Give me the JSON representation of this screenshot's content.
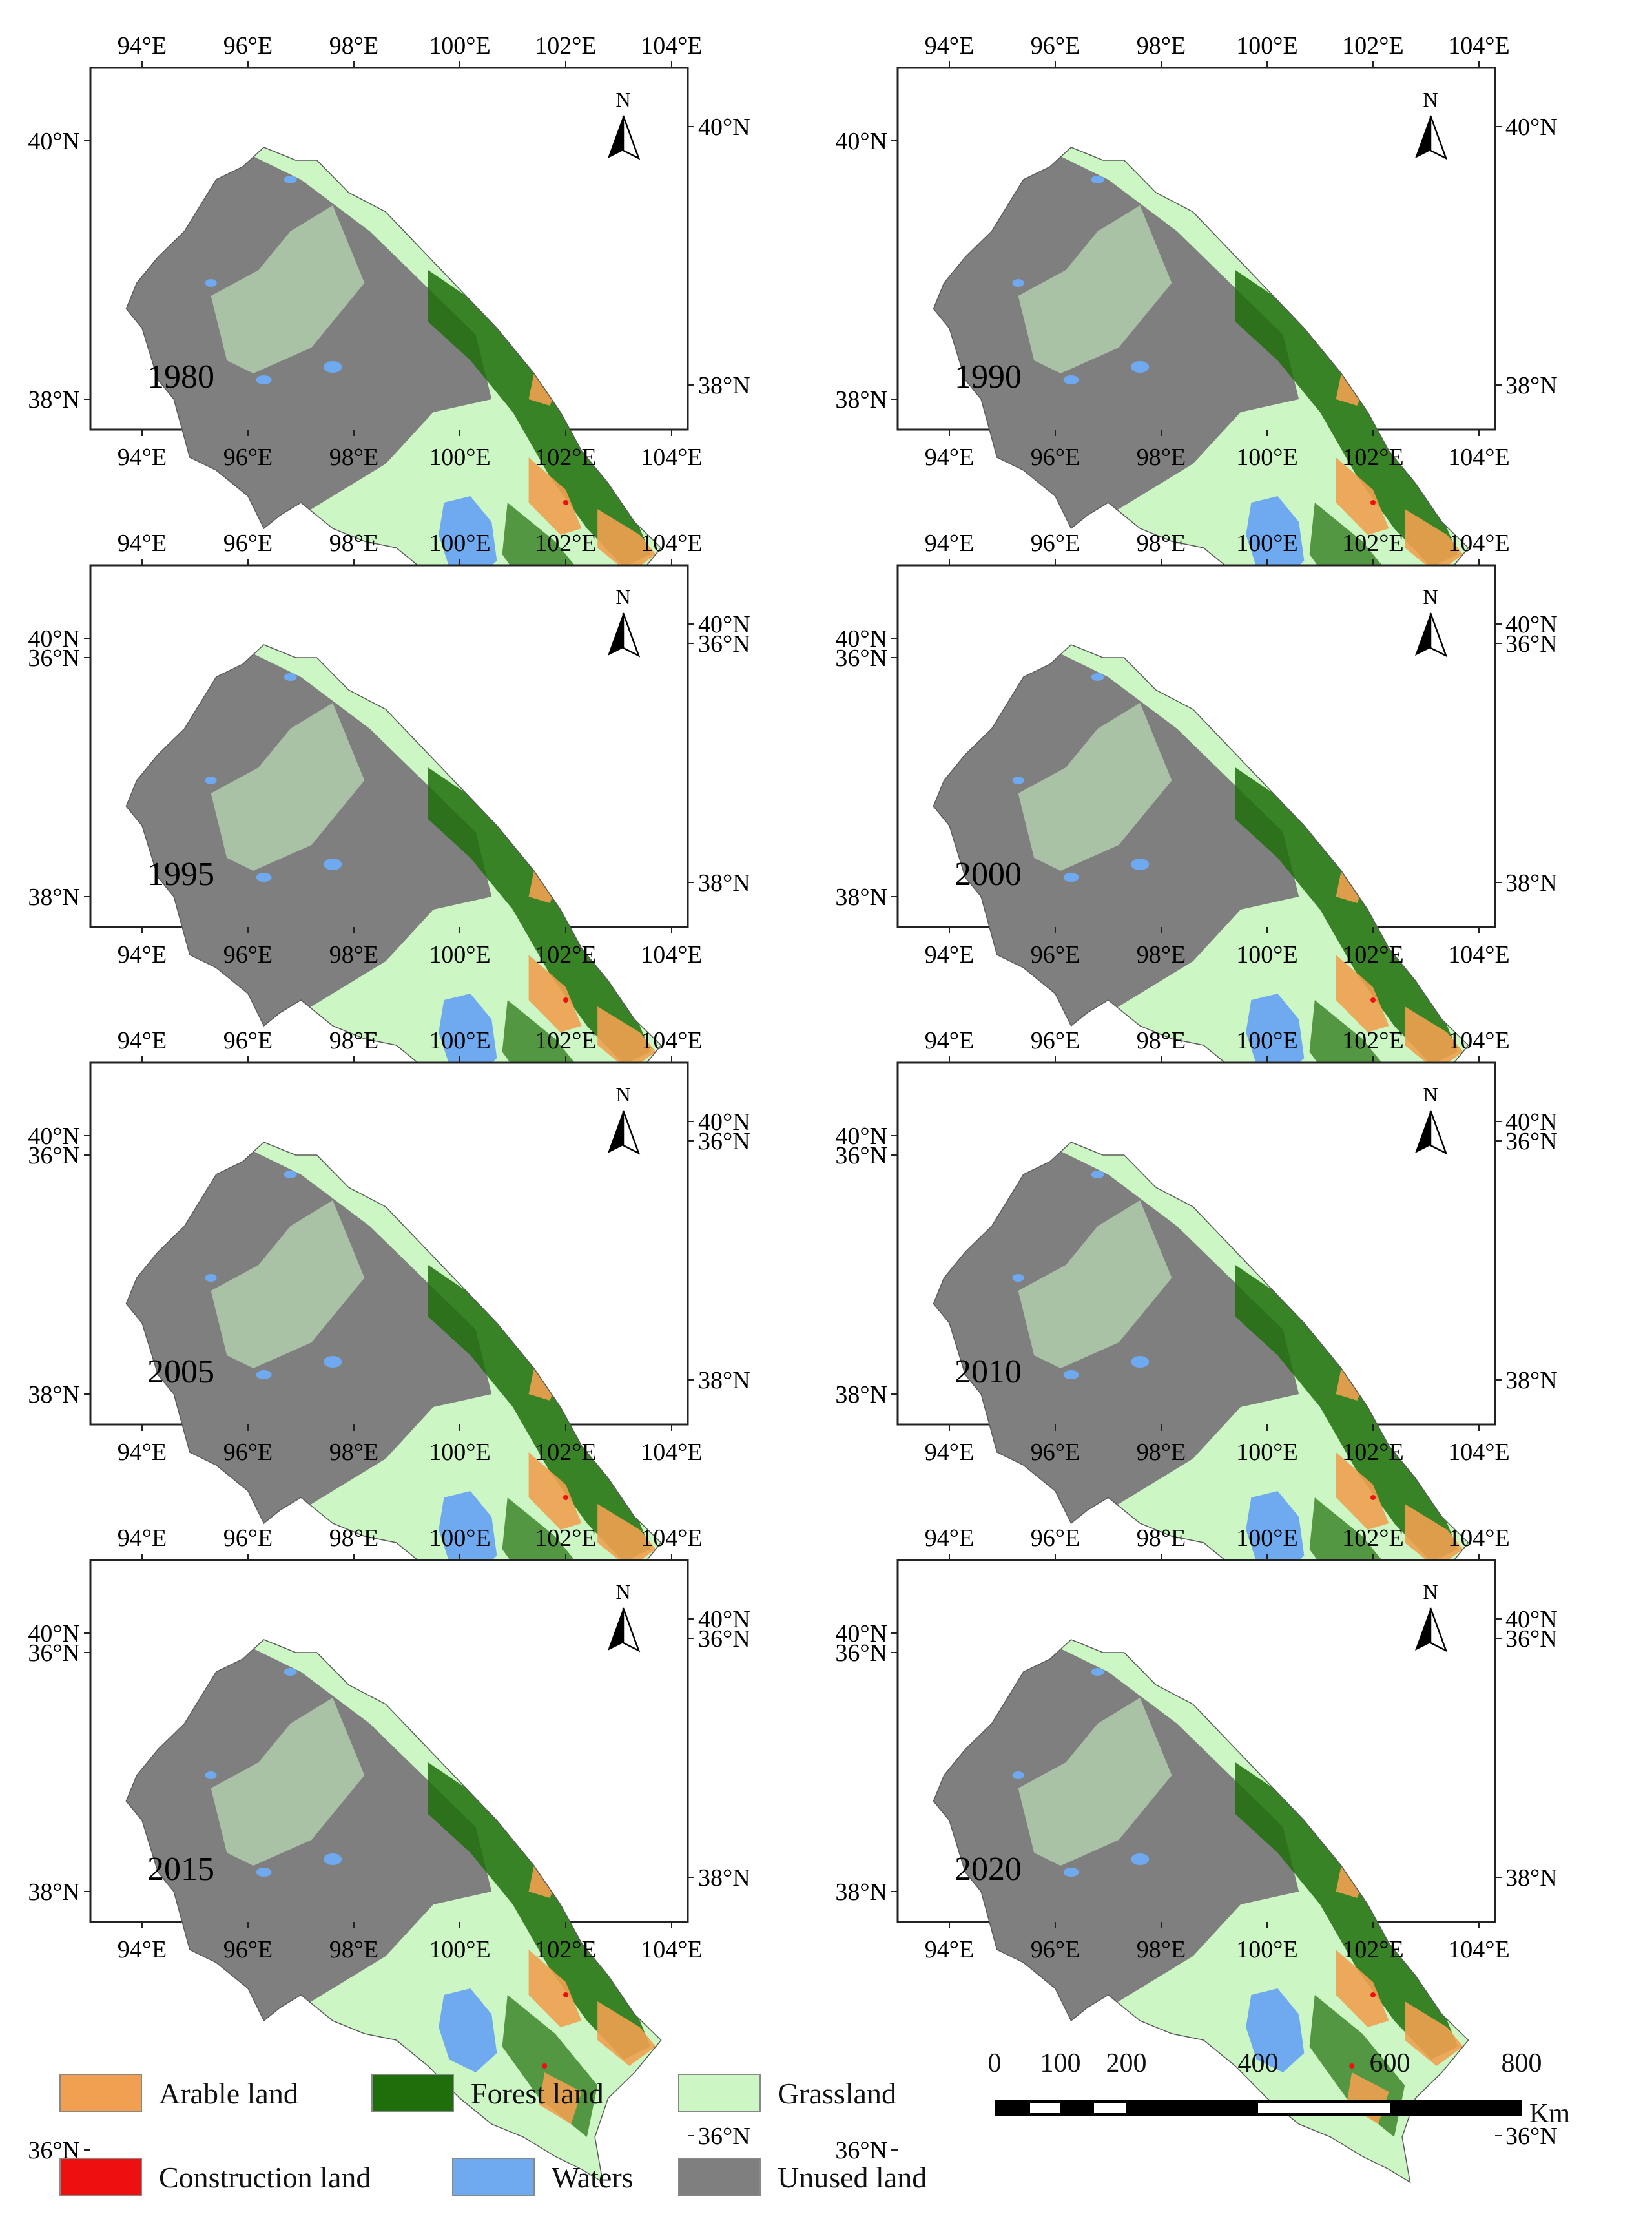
{
  "map": {
    "lon_ticks": [
      "94°E",
      "96°E",
      "98°E",
      "100°E",
      "102°E",
      "104°E"
    ],
    "lat_ticks": [
      "40°N",
      "38°N",
      "36°N"
    ],
    "north_label": "N",
    "panels": [
      {
        "year": "1980"
      },
      {
        "year": "1990"
      },
      {
        "year": "1995"
      },
      {
        "year": "2000"
      },
      {
        "year": "2005"
      },
      {
        "year": "2010"
      },
      {
        "year": "2015"
      },
      {
        "year": "2020"
      }
    ]
  },
  "legend": {
    "items": [
      {
        "label": "Arable land",
        "color": "#f0a050"
      },
      {
        "label": "Forest land",
        "color": "#1f6e0c"
      },
      {
        "label": "Grassland",
        "color": "#ccf7c4"
      },
      {
        "label": "Construction land",
        "color": "#ee1010"
      },
      {
        "label": "Waters",
        "color": "#6fa9f0"
      },
      {
        "label": "Unused land",
        "color": "#7f7f7f"
      }
    ]
  },
  "scale_bar": {
    "ticks": [
      "0",
      "100",
      "200",
      "400",
      "600",
      "800"
    ],
    "unit": "Km"
  }
}
